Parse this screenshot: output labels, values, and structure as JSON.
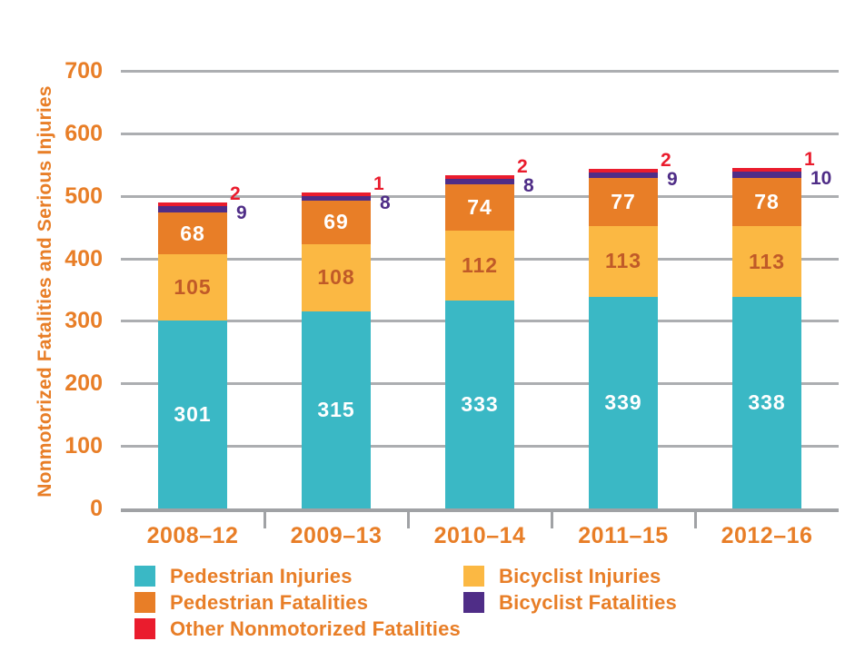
{
  "page": {
    "background": "#ffffff"
  },
  "colors": {
    "text_orange": "#e87e27",
    "gridline": "#acaeb1",
    "axis": "#a0a2a5",
    "teal": "#3ab8c5",
    "yellow": "#fbb843",
    "orange": "#e87e27",
    "purple": "#4f2d87",
    "red": "#ea1c2d",
    "yellow_label": "#c05a28",
    "white": "#ffffff"
  },
  "chart_data": {
    "type": "bar",
    "stacked": true,
    "title": "",
    "ylabel": "Nonmotorized Fatalities and Serious Injuries",
    "xlabel": "",
    "ylim": [
      0,
      700
    ],
    "y_ticks": [
      700,
      600,
      500,
      400,
      300,
      200,
      100,
      0
    ],
    "grid": true,
    "categories": [
      "2008–12",
      "2009–13",
      "2010–14",
      "2011–15",
      "2012–16"
    ],
    "series": [
      {
        "name": "Pedestrian Injuries",
        "color_key": "teal",
        "label_color_key": "white",
        "label_outside": false,
        "values": [
          301,
          315,
          333,
          339,
          338
        ]
      },
      {
        "name": "Bicyclist Injuries",
        "color_key": "yellow",
        "label_color_key": "yellow_label",
        "label_outside": false,
        "values": [
          105,
          108,
          112,
          113,
          113
        ]
      },
      {
        "name": "Pedestrian Fatalities",
        "color_key": "orange",
        "label_color_key": "white",
        "label_outside": false,
        "values": [
          68,
          69,
          74,
          77,
          78
        ]
      },
      {
        "name": "Bicyclist Fatalities",
        "color_key": "purple",
        "label_color_key": "purple",
        "label_outside": true,
        "values": [
          9,
          8,
          8,
          9,
          10
        ]
      },
      {
        "name": "Other Nonmotorized Fatalities",
        "color_key": "red",
        "label_color_key": "red",
        "label_outside": true,
        "values": [
          2,
          1,
          2,
          2,
          1
        ]
      }
    ],
    "legend": {
      "position": "bottom",
      "column1": [
        "Pedestrian Injuries",
        "Pedestrian Fatalities",
        "Other Nonmotorized Fatalities"
      ],
      "column2": [
        "Bicyclist Injuries",
        "Bicyclist Fatalities"
      ]
    }
  }
}
